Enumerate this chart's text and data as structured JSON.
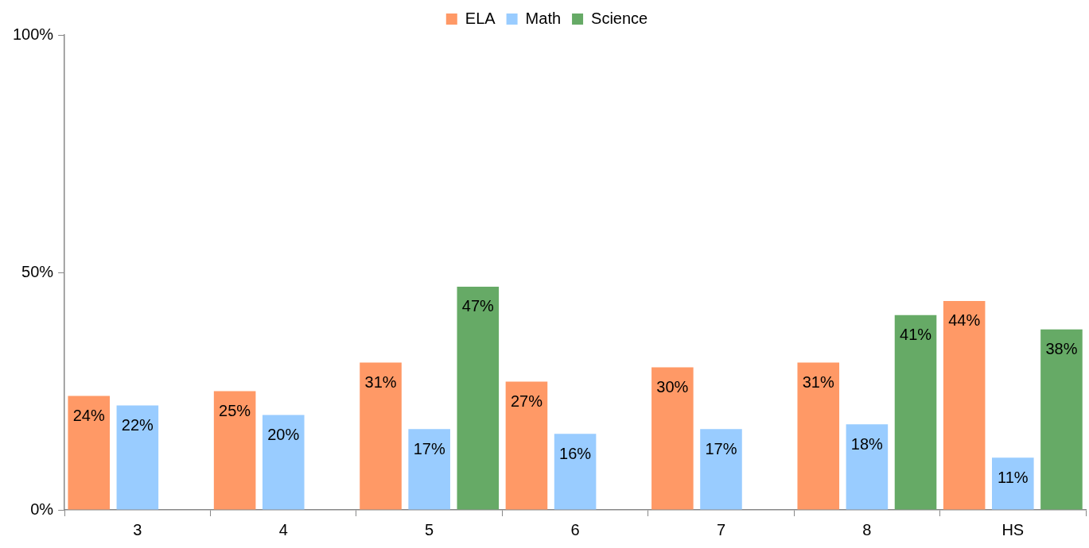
{
  "chart_data": {
    "type": "bar",
    "categories": [
      "3",
      "4",
      "5",
      "6",
      "7",
      "8",
      "HS"
    ],
    "series": [
      {
        "name": "ELA",
        "color": "#ff9966",
        "values": [
          24,
          25,
          31,
          27,
          30,
          31,
          44
        ],
        "value_labels": [
          "24%",
          "25%",
          "31%",
          "27%",
          "30%",
          "31%",
          "44%"
        ]
      },
      {
        "name": "Math",
        "color": "#99ccff",
        "values": [
          22,
          20,
          17,
          16,
          17,
          18,
          11
        ],
        "value_labels": [
          "22%",
          "20%",
          "17%",
          "16%",
          "17%",
          "18%",
          "11%"
        ]
      },
      {
        "name": "Science",
        "color": "#66aa66",
        "values": [
          null,
          null,
          47,
          null,
          null,
          41,
          38
        ],
        "value_labels": [
          null,
          null,
          "47%",
          null,
          null,
          "41%",
          "38%"
        ]
      }
    ],
    "ylim": [
      0,
      100
    ],
    "yticks": [
      {
        "value": 0,
        "label": "0%"
      },
      {
        "value": 50,
        "label": "50%"
      },
      {
        "value": 100,
        "label": "100%"
      }
    ],
    "grid": false,
    "legend": "top"
  }
}
